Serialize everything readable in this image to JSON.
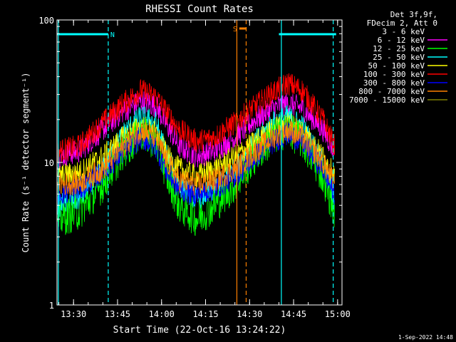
{
  "chart_data": {
    "type": "line",
    "title": "RHESSI Count Rates",
    "xlabel": "Start Time (22-Oct-16 13:24:22)",
    "ylabel": "Count Rate (s⁻¹ detector segment⁻¹)",
    "y_scale": "log",
    "ylim": [
      1,
      100
    ],
    "xlim": [
      "13:24:22",
      "15:01:30"
    ],
    "x_ticks": [
      "13:30",
      "13:45",
      "14:00",
      "14:15",
      "14:30",
      "14:45",
      "15:00"
    ],
    "y_ticks": [
      "1",
      "10",
      "100"
    ],
    "legend_header": [
      "Det 3f,9f,",
      "FDecim 2, Att 0"
    ],
    "legend_position": "right",
    "series": [
      {
        "name": "3 - 6 keV",
        "color": "#000000",
        "x": [
          "13:25",
          "13:32",
          "13:40",
          "13:47",
          "13:53",
          "13:58",
          "14:02",
          "14:06",
          "14:12",
          "14:18",
          "14:25",
          "14:32",
          "14:38",
          "14:43",
          "14:48",
          "14:55",
          "14:59"
        ],
        "values": [
          16,
          17,
          19,
          23,
          28,
          30,
          45,
          35,
          23,
          19,
          21,
          25,
          30,
          33,
          30,
          22,
          17
        ]
      },
      {
        "name": "6 - 12 keV",
        "color": "#ff00ff",
        "x": [
          "13:25",
          "13:32",
          "13:40",
          "13:47",
          "13:53",
          "13:58",
          "14:02",
          "14:06",
          "14:12",
          "14:18",
          "14:25",
          "14:32",
          "14:38",
          "14:43",
          "14:48",
          "14:55",
          "14:59"
        ],
        "values": [
          11,
          12,
          17,
          23,
          27,
          25,
          18,
          13,
          11,
          12,
          15,
          20,
          24,
          26,
          24,
          17,
          12
        ]
      },
      {
        "name": "12 - 25 keV",
        "color": "#00ff00",
        "x": [
          "13:25",
          "13:32",
          "13:40",
          "13:47",
          "13:53",
          "13:58",
          "14:02",
          "14:06",
          "14:12",
          "14:18",
          "14:25",
          "14:32",
          "14:38",
          "14:43",
          "14:48",
          "14:55",
          "14:59"
        ],
        "values": [
          4,
          4.5,
          7,
          12,
          16,
          14,
          8,
          5,
          4,
          5,
          7,
          11,
          15,
          17,
          14,
          8,
          4.5
        ]
      },
      {
        "name": "25 - 50 keV",
        "color": "#00ffff",
        "x": [
          "13:25",
          "13:32",
          "13:40",
          "13:47",
          "13:53",
          "13:58",
          "14:02",
          "14:06",
          "14:12",
          "14:18",
          "14:25",
          "14:32",
          "14:38",
          "14:43",
          "14:48",
          "14:55",
          "14:59"
        ],
        "values": [
          5,
          5.5,
          9,
          16,
          21,
          19,
          11,
          7,
          5.5,
          6.5,
          9,
          14,
          19,
          21,
          18,
          10,
          5.5
        ]
      },
      {
        "name": "50 - 100 keV",
        "color": "#ffff00",
        "x": [
          "13:25",
          "13:32",
          "13:40",
          "13:47",
          "13:53",
          "13:58",
          "14:02",
          "14:06",
          "14:12",
          "14:18",
          "14:25",
          "14:32",
          "14:38",
          "14:43",
          "14:48",
          "14:55",
          "14:59"
        ],
        "values": [
          8,
          8.5,
          11,
          15,
          18,
          16,
          11,
          9,
          8,
          9,
          11,
          14,
          17,
          19,
          17,
          11,
          8
        ]
      },
      {
        "name": "100 - 300 keV",
        "color": "#ff0000",
        "x": [
          "13:25",
          "13:32",
          "13:40",
          "13:47",
          "13:53",
          "13:58",
          "14:02",
          "14:06",
          "14:12",
          "14:18",
          "14:25",
          "14:32",
          "14:38",
          "14:43",
          "14:48",
          "14:55",
          "14:59"
        ],
        "values": [
          12,
          13,
          19,
          26,
          32,
          29,
          22,
          17,
          14,
          15,
          19,
          25,
          31,
          36,
          32,
          20,
          13
        ]
      },
      {
        "name": "300 - 800 keV",
        "color": "#0000ff",
        "x": [
          "13:25",
          "13:32",
          "13:40",
          "13:47",
          "13:53",
          "13:58",
          "14:02",
          "14:06",
          "14:12",
          "14:18",
          "14:25",
          "14:32",
          "14:38",
          "14:43",
          "14:48",
          "14:55",
          "14:59"
        ],
        "values": [
          6,
          6.5,
          8.5,
          12,
          15,
          13,
          8.5,
          6.5,
          6,
          6.5,
          8,
          11,
          14,
          16,
          14,
          9,
          6
        ]
      },
      {
        "name": "800 - 7000 keV",
        "color": "#ff8000",
        "x": [
          "13:25",
          "13:32",
          "13:40",
          "13:47",
          "13:53",
          "13:58",
          "14:02",
          "14:06",
          "14:12",
          "14:18",
          "14:25",
          "14:32",
          "14:38",
          "14:43",
          "14:48",
          "14:55",
          "14:59"
        ],
        "values": [
          7,
          7.2,
          9,
          13,
          17,
          15,
          10,
          7.5,
          7,
          7.5,
          9,
          12,
          15,
          17,
          15,
          10,
          7
        ]
      },
      {
        "name": "7000 - 15000 keV",
        "color": "#808000",
        "x": [],
        "values": []
      }
    ],
    "annotations": [
      {
        "label": "N",
        "color": "#00ffff",
        "bar": [
          "13:24:22",
          "13:41:50"
        ]
      },
      {
        "label": "S",
        "color": "#ff8000",
        "bar": [
          "14:26:30",
          "14:29:00"
        ]
      },
      {
        "label": "",
        "color": "#00ffff",
        "bar": [
          "14:40:00",
          "14:59:30"
        ]
      }
    ],
    "vertical_lines": [
      {
        "time": "13:24:50",
        "color": "#00ffff",
        "style": "solid"
      },
      {
        "time": "13:41:50",
        "color": "#00ffff",
        "style": "dashed"
      },
      {
        "time": "14:25:40",
        "color": "#ff8000",
        "style": "solid"
      },
      {
        "time": "14:28:50",
        "color": "#ff8000",
        "style": "dashed"
      },
      {
        "time": "14:40:50",
        "color": "#00ffff",
        "style": "solid"
      },
      {
        "time": "14:58:30",
        "color": "#00ffff",
        "style": "dashed"
      }
    ]
  },
  "footer": {
    "timestamp": "1-Sep-2022 14:48"
  }
}
